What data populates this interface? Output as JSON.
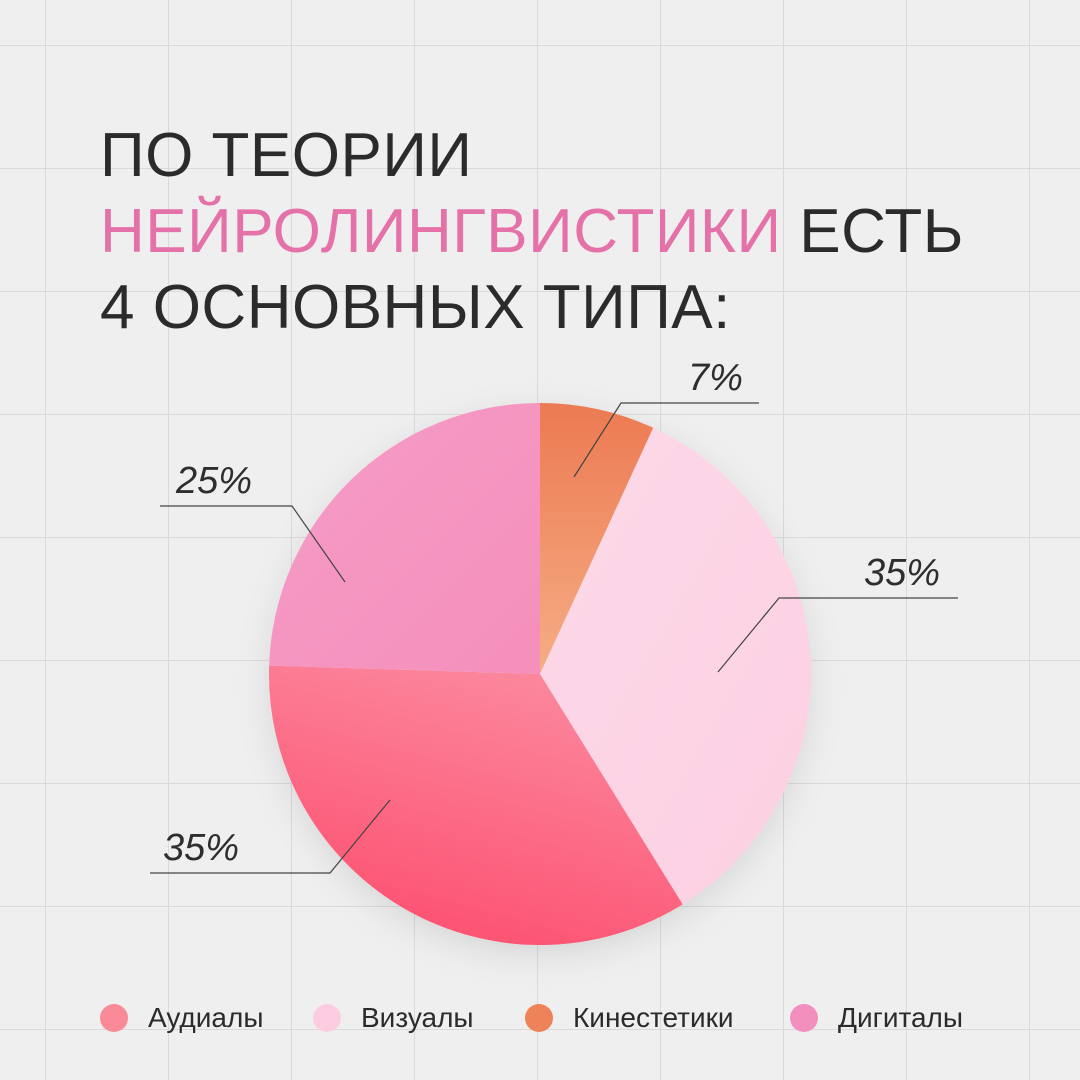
{
  "headline": {
    "line1": "ПО ТЕОРИИ",
    "line2_accent": "НЕЙРОЛИНГВИСТИКИ",
    "line2_rest": " ЕСТЬ",
    "line3": "4 ОСНОВНЫХ ТИПА:"
  },
  "chart_data": {
    "type": "pie",
    "title": "",
    "slices": [
      {
        "label": "Кинестетики",
        "value": 7,
        "display": "7%",
        "color": "#ee8258"
      },
      {
        "label": "Визуалы",
        "value": 35,
        "display": "35%",
        "color": "#fcd3e4"
      },
      {
        "label": "Аудиалы",
        "value": 35,
        "display": "35%",
        "color": "#fb6f88"
      },
      {
        "label": "Дигиталы",
        "value": 25,
        "display": "25%",
        "color": "#f591bf"
      }
    ],
    "start": "12 o'clock",
    "direction": "clockwise",
    "legend_position": "bottom"
  },
  "legend": [
    {
      "label": "Аудиалы",
      "color": "#fb8a98"
    },
    {
      "label": "Визуалы",
      "color": "#fccde1"
    },
    {
      "label": "Кинестетики",
      "color": "#ee8258"
    },
    {
      "label": "Дигиталы",
      "color": "#f38fbd"
    }
  ]
}
